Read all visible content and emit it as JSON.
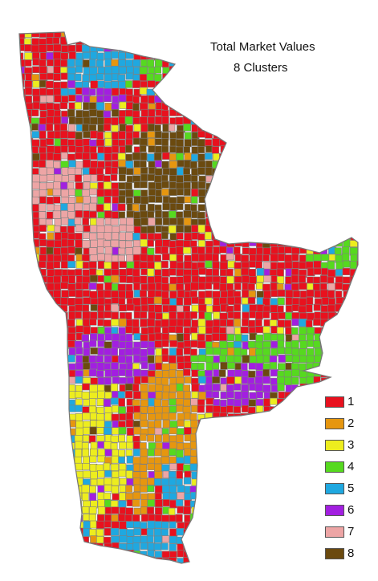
{
  "map": {
    "title_line1": "Total Market Values",
    "title_line2": "8 Clusters"
  },
  "legend": {
    "items": [
      {
        "label": "1",
        "color": "#e8111e"
      },
      {
        "label": "2",
        "color": "#e6960f"
      },
      {
        "label": "3",
        "color": "#eded1e"
      },
      {
        "label": "4",
        "color": "#56d91f"
      },
      {
        "label": "5",
        "color": "#1fa8e0"
      },
      {
        "label": "6",
        "color": "#a21fe0"
      },
      {
        "label": "7",
        "color": "#eda5a5"
      },
      {
        "label": "8",
        "color": "#6b4a0f"
      }
    ]
  },
  "colors": {
    "county_border": "#7f7f7f",
    "outline": "#777777"
  }
}
